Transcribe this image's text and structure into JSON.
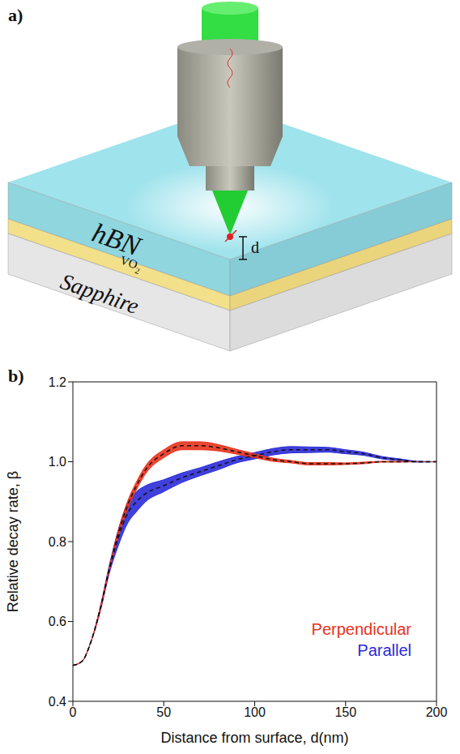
{
  "diagram": {
    "panel_label": "a)",
    "layers": [
      "hBN",
      "VO2",
      "Sapphire"
    ],
    "distance_label": "d"
  },
  "chart_data": {
    "panel_label": "b)",
    "type": "line",
    "x_label": "Distance from surface, d(nm)",
    "y_label": "Relative decay rate, β",
    "xlim": [
      0,
      200
    ],
    "xticks": [
      0,
      50,
      100,
      150,
      200
    ],
    "ylim": [
      0.4,
      1.2
    ],
    "yticks": [
      0.4,
      0.6,
      0.8,
      {
        "value": 1,
        "label": "1.0"
      },
      1.2
    ],
    "legend": "lower right",
    "x": [
      0,
      5,
      10,
      15,
      20,
      25,
      30,
      35,
      40,
      50,
      60,
      70,
      80,
      90,
      100,
      110,
      120,
      130,
      140,
      150,
      160,
      170,
      180,
      190,
      200
    ],
    "series": [
      {
        "name": "Parallel",
        "color": "#2b2bd9",
        "line_style": "dashed",
        "values": [
          0.49,
          0.5,
          0.55,
          0.63,
          0.73,
          0.81,
          0.87,
          0.9,
          0.92,
          0.94,
          0.96,
          0.975,
          0.99,
          1.005,
          1.015,
          1.025,
          1.03,
          1.03,
          1.03,
          1.025,
          1.02,
          1.01,
          1.005,
          1.0,
          1.0
        ],
        "lower": [
          0.49,
          0.5,
          0.55,
          0.625,
          0.72,
          0.79,
          0.845,
          0.875,
          0.9,
          0.925,
          0.948,
          0.965,
          0.98,
          0.997,
          1.007,
          1.017,
          1.022,
          1.023,
          1.024,
          1.02,
          1.016,
          1.007,
          1.003,
          0.999,
          1.0
        ],
        "upper": [
          0.49,
          0.5,
          0.55,
          0.635,
          0.74,
          0.83,
          0.895,
          0.925,
          0.94,
          0.955,
          0.972,
          0.985,
          1.0,
          1.013,
          1.023,
          1.033,
          1.038,
          1.037,
          1.036,
          1.03,
          1.024,
          1.013,
          1.007,
          1.001,
          1.0
        ]
      },
      {
        "name": "Perpendicular",
        "color": "#e8331c",
        "line_style": "dashed",
        "values": [
          0.49,
          0.5,
          0.55,
          0.63,
          0.73,
          0.82,
          0.89,
          0.94,
          0.98,
          1.02,
          1.04,
          1.04,
          1.035,
          1.025,
          1.015,
          1.005,
          1.0,
          0.995,
          0.995,
          0.995,
          0.997,
          1.0,
          1.0,
          1.0,
          1.0
        ],
        "lower": [
          0.49,
          0.5,
          0.55,
          0.625,
          0.725,
          0.812,
          0.88,
          0.93,
          0.97,
          1.01,
          1.03,
          1.03,
          1.027,
          1.019,
          1.01,
          1.001,
          0.997,
          0.992,
          0.992,
          0.993,
          0.995,
          0.999,
          0.999,
          1.0,
          1.0
        ],
        "upper": [
          0.49,
          0.5,
          0.55,
          0.635,
          0.735,
          0.828,
          0.9,
          0.95,
          0.99,
          1.03,
          1.05,
          1.05,
          1.043,
          1.031,
          1.02,
          1.009,
          1.003,
          0.998,
          0.998,
          0.997,
          0.999,
          1.001,
          1.001,
          1.0,
          1.0
        ]
      }
    ]
  }
}
